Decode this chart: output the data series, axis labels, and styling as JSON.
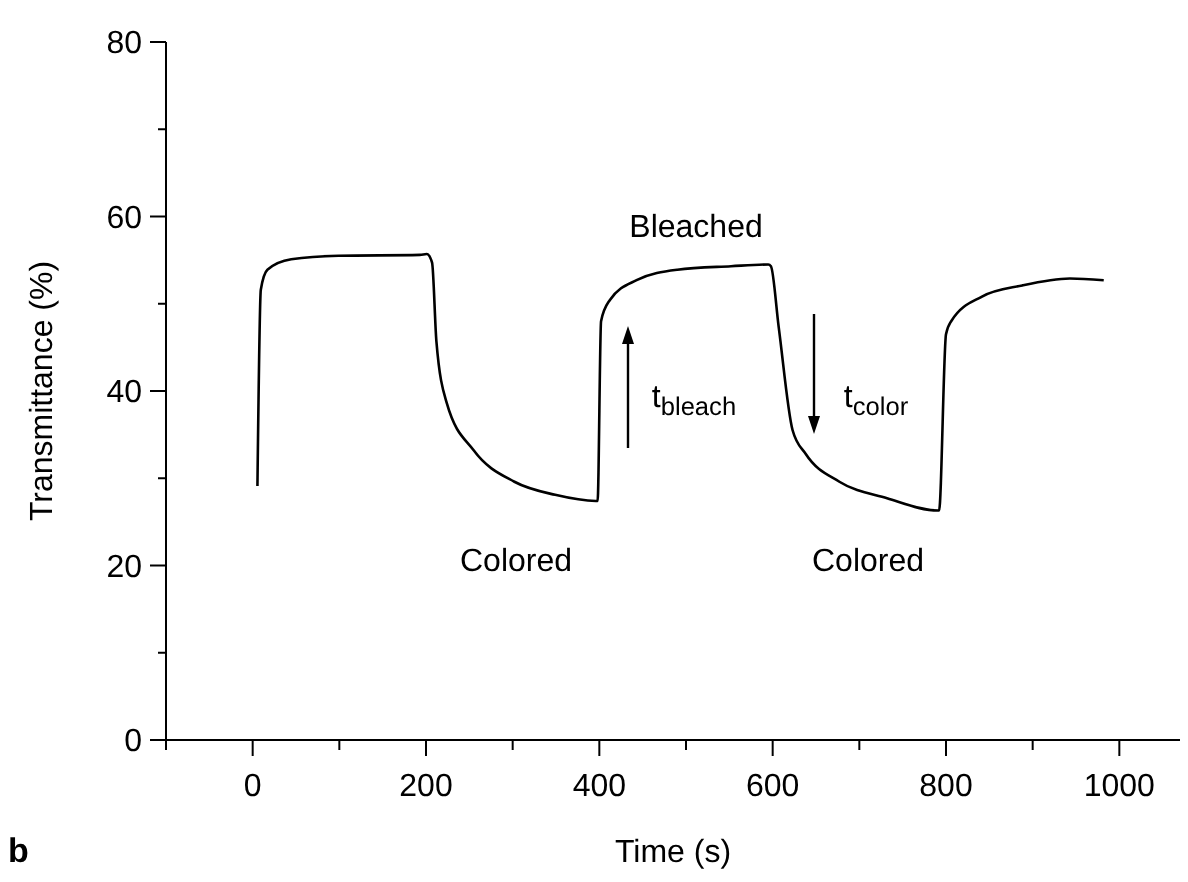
{
  "chart_data": {
    "type": "line",
    "xlabel": "Time (s)",
    "ylabel": "Transmittance (%)",
    "xlim": [
      -100,
      1070
    ],
    "xticks": [
      0,
      200,
      400,
      600,
      800,
      1000
    ],
    "ylim": [
      0,
      80
    ],
    "yticks": [
      0,
      20,
      40,
      60,
      80
    ],
    "grid": false,
    "marker": "none",
    "line_style": "solid",
    "series": [
      {
        "color": "#000000",
        "x": [
          5.5,
          9.4,
          17,
          44.5,
          99,
          193,
          201,
          207,
          212,
          224,
          255,
          302,
          349,
          396,
          398,
          402,
          412,
          443,
          490,
          552,
          595,
          598,
          607,
          623,
          638,
          677,
          732,
          791,
          792,
          800,
          806,
          841,
          888,
          943,
          982
        ],
        "values": [
          29.1,
          51.6,
          53.9,
          55.1,
          55.5,
          55.6,
          55.7,
          54.7,
          45.7,
          38.6,
          33.2,
          29.6,
          28.1,
          27.4,
          27.4,
          48.0,
          50.4,
          52.7,
          53.9,
          54.3,
          54.5,
          54.3,
          47.3,
          35.5,
          32.8,
          29.6,
          27.7,
          26.3,
          26.3,
          46.5,
          48.0,
          50.8,
          52.1,
          52.9,
          52.7
        ]
      }
    ],
    "annotations": [
      "Bleached",
      "Colored",
      "Colored",
      "t$_{bleach}$",
      "t$_{color}$",
      "b"
    ]
  }
}
